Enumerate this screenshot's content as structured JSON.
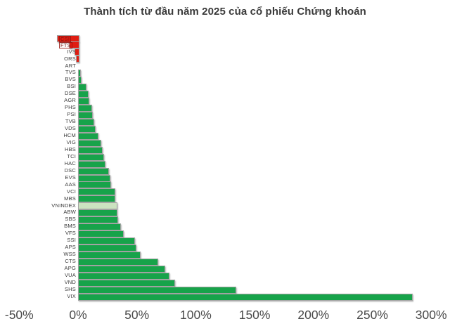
{
  "title": "Thành tích từ đầu năm 2025 của cổ phiếu Chứng khoán",
  "chart_data": {
    "type": "bar",
    "orientation": "horizontal",
    "title": "Thành tích từ đầu năm 2025 của cổ phiếu Chứng khoán",
    "unit": "%",
    "xlim": [
      -50,
      300
    ],
    "x_ticks": [
      "-50%",
      "0%",
      "50%",
      "100%",
      "150%",
      "200%",
      "250%",
      "300%"
    ],
    "x_tick_values": [
      -50,
      0,
      50,
      100,
      150,
      200,
      250,
      300
    ],
    "grid": false,
    "legend": false,
    "highlight_category": "VNINDEX",
    "categories": [
      "CSI",
      "FTS",
      "IVS",
      "ORS",
      "ART",
      "TVS",
      "BVS",
      "BSI",
      "DSE",
      "AGR",
      "PHS",
      "PSI",
      "TVB",
      "VDS",
      "HCM",
      "VIG",
      "HBS",
      "TCI",
      "HAC",
      "DSC",
      "EVS",
      "AAS",
      "VCI",
      "MBS",
      "VNINDEX",
      "ABW",
      "SBS",
      "BMS",
      "VFS",
      "SSI",
      "APS",
      "WSS",
      "CTS",
      "APG",
      "VUA",
      "VND",
      "SHS",
      "VIX"
    ],
    "values": [
      -18,
      -8,
      -3,
      -1.5,
      0,
      1,
      2,
      6,
      7.5,
      8.5,
      10.5,
      11.5,
      12.5,
      13.5,
      16,
      18.5,
      20,
      21,
      22,
      25,
      26,
      27,
      30.5,
      30.5,
      32,
      32,
      33,
      35,
      37.5,
      47,
      48.5,
      52,
      67,
      73,
      76.5,
      81,
      133,
      283
    ],
    "colors": {
      "positive": "#17a34a",
      "negative": "#e01d12",
      "index_highlight": "#cbe2c0",
      "bar_border": "#a3a3a3",
      "title_text": "#3a3a3a",
      "axis_text": "#4a4a4a",
      "label_text": "#3c3c3c"
    }
  }
}
